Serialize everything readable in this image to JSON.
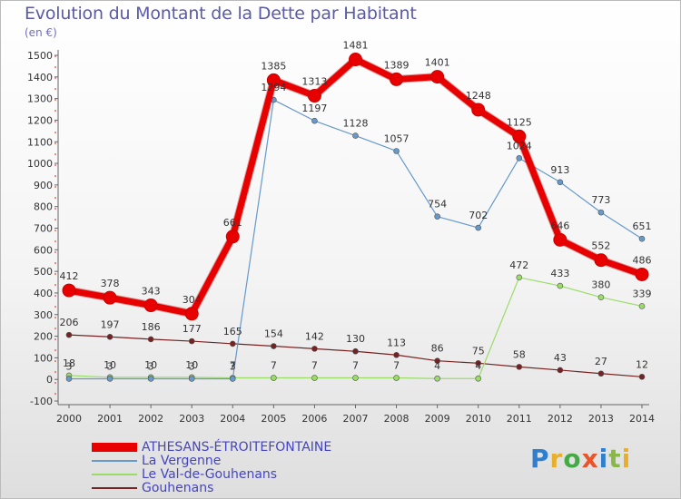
{
  "header": {
    "title": "Evolution du Montant de la Dette par Habitant",
    "subtitle": "(en €)"
  },
  "brand": {
    "text": "Proxiti",
    "letter_colors": [
      "#2f7fd0",
      "#e8b02a",
      "#44aa44",
      "#e8552a",
      "#2f7fd0",
      "#8ab848",
      "#e8b02a"
    ]
  },
  "chart_data": {
    "type": "line",
    "title": "Evolution du Montant de la Dette par Habitant",
    "subtitle": "(en €)",
    "x": [
      2000,
      2001,
      2002,
      2003,
      2004,
      2005,
      2006,
      2007,
      2008,
      2009,
      2010,
      2011,
      2012,
      2013,
      2014
    ],
    "xlabel": "",
    "ylabel": "",
    "ylim": [
      -100,
      1500
    ],
    "yticks": [
      -100,
      0,
      100,
      200,
      300,
      400,
      500,
      600,
      700,
      800,
      900,
      1000,
      1100,
      1200,
      1300,
      1400,
      1500
    ],
    "grid": false,
    "legend_position": "bottom-left",
    "series": [
      {
        "name": "ATHESANS-ÉTROITEFONTAINE",
        "color": "#e80000",
        "values": [
          412,
          378,
          343,
          304,
          661,
          1385,
          1313,
          1481,
          1389,
          1401,
          1248,
          1125,
          646,
          552,
          486
        ]
      },
      {
        "name": "La Vergenne",
        "color": "#6699cc",
        "values": [
          3,
          3,
          3,
          3,
          3,
          1294,
          1197,
          1128,
          1057,
          754,
          702,
          1024,
          913,
          773,
          651
        ]
      },
      {
        "name": "Le Val-de-Gouhenans",
        "color": "#99dd66",
        "values": [
          18,
          10,
          10,
          10,
          7,
          7,
          7,
          7,
          7,
          4,
          4,
          472,
          433,
          380,
          339
        ]
      },
      {
        "name": "Gouhenans",
        "color": "#772222",
        "values": [
          206,
          197,
          186,
          177,
          165,
          154,
          142,
          130,
          113,
          86,
          75,
          58,
          43,
          27,
          12
        ]
      }
    ]
  }
}
